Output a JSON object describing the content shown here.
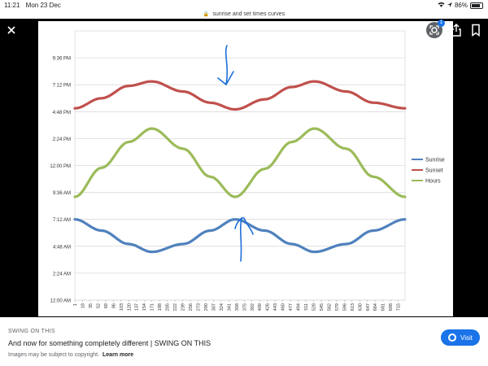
{
  "status_bar": {
    "time": "11:21",
    "date": "Mon 23 Dec",
    "battery": "86%"
  },
  "url_bar": {
    "text": "sunrise and set times curves"
  },
  "viewer": {
    "lens_badge": "1"
  },
  "chart_data": {
    "type": "line",
    "xlabel": "",
    "ylabel": "",
    "ylim": [
      0,
      24
    ],
    "x_tick_labels": [
      "1",
      "18",
      "35",
      "52",
      "69",
      "86",
      "103",
      "120",
      "137",
      "154",
      "171",
      "188",
      "205",
      "222",
      "239",
      "256",
      "273",
      "290",
      "307",
      "324",
      "341",
      "358",
      "375",
      "392",
      "409",
      "426",
      "443",
      "460",
      "477",
      "494",
      "511",
      "528",
      "545",
      "562",
      "579",
      "596",
      "613",
      "630",
      "647",
      "664",
      "681",
      "698",
      "715"
    ],
    "y_tick_labels": [
      "12:00 AM",
      "2:24 AM",
      "4:48 AM",
      "7:12 AM",
      "9:36 AM",
      "12:00 PM",
      "2:24 PM",
      "4:48 PM",
      "7:12 PM",
      "9:36 PM"
    ],
    "legend_position": "right",
    "series": [
      {
        "name": "Sunrise",
        "color": "#4f81bd",
        "x": [
          1,
          60,
          120,
          171,
          240,
          300,
          355,
          420,
          480,
          530,
          600,
          660,
          730
        ],
        "values": [
          7.2,
          6.2,
          5.0,
          4.3,
          5.0,
          6.2,
          7.2,
          6.2,
          5.0,
          4.3,
          5.0,
          6.2,
          7.2
        ]
      },
      {
        "name": "Sunset",
        "color": "#c0504d",
        "x": [
          1,
          60,
          120,
          171,
          240,
          300,
          355,
          420,
          480,
          530,
          600,
          660,
          730
        ],
        "values": [
          17.1,
          18.0,
          19.1,
          19.5,
          18.6,
          17.6,
          17.0,
          17.9,
          19.0,
          19.5,
          18.6,
          17.6,
          17.1
        ]
      },
      {
        "name": "Hours",
        "color": "#9bbb59",
        "x": [
          1,
          60,
          120,
          171,
          240,
          300,
          355,
          420,
          480,
          530,
          600,
          660,
          730
        ],
        "values": [
          9.2,
          11.8,
          14.1,
          15.3,
          13.5,
          11.0,
          9.2,
          11.7,
          14.1,
          15.3,
          13.5,
          11.0,
          9.2
        ]
      }
    ]
  },
  "footer": {
    "source": "SWING ON THIS",
    "title": "And now for something completely different | SWING ON THIS",
    "copyright": "Images may be subject to copyright.",
    "learn_more": "Learn more",
    "visit_label": "Visit"
  }
}
